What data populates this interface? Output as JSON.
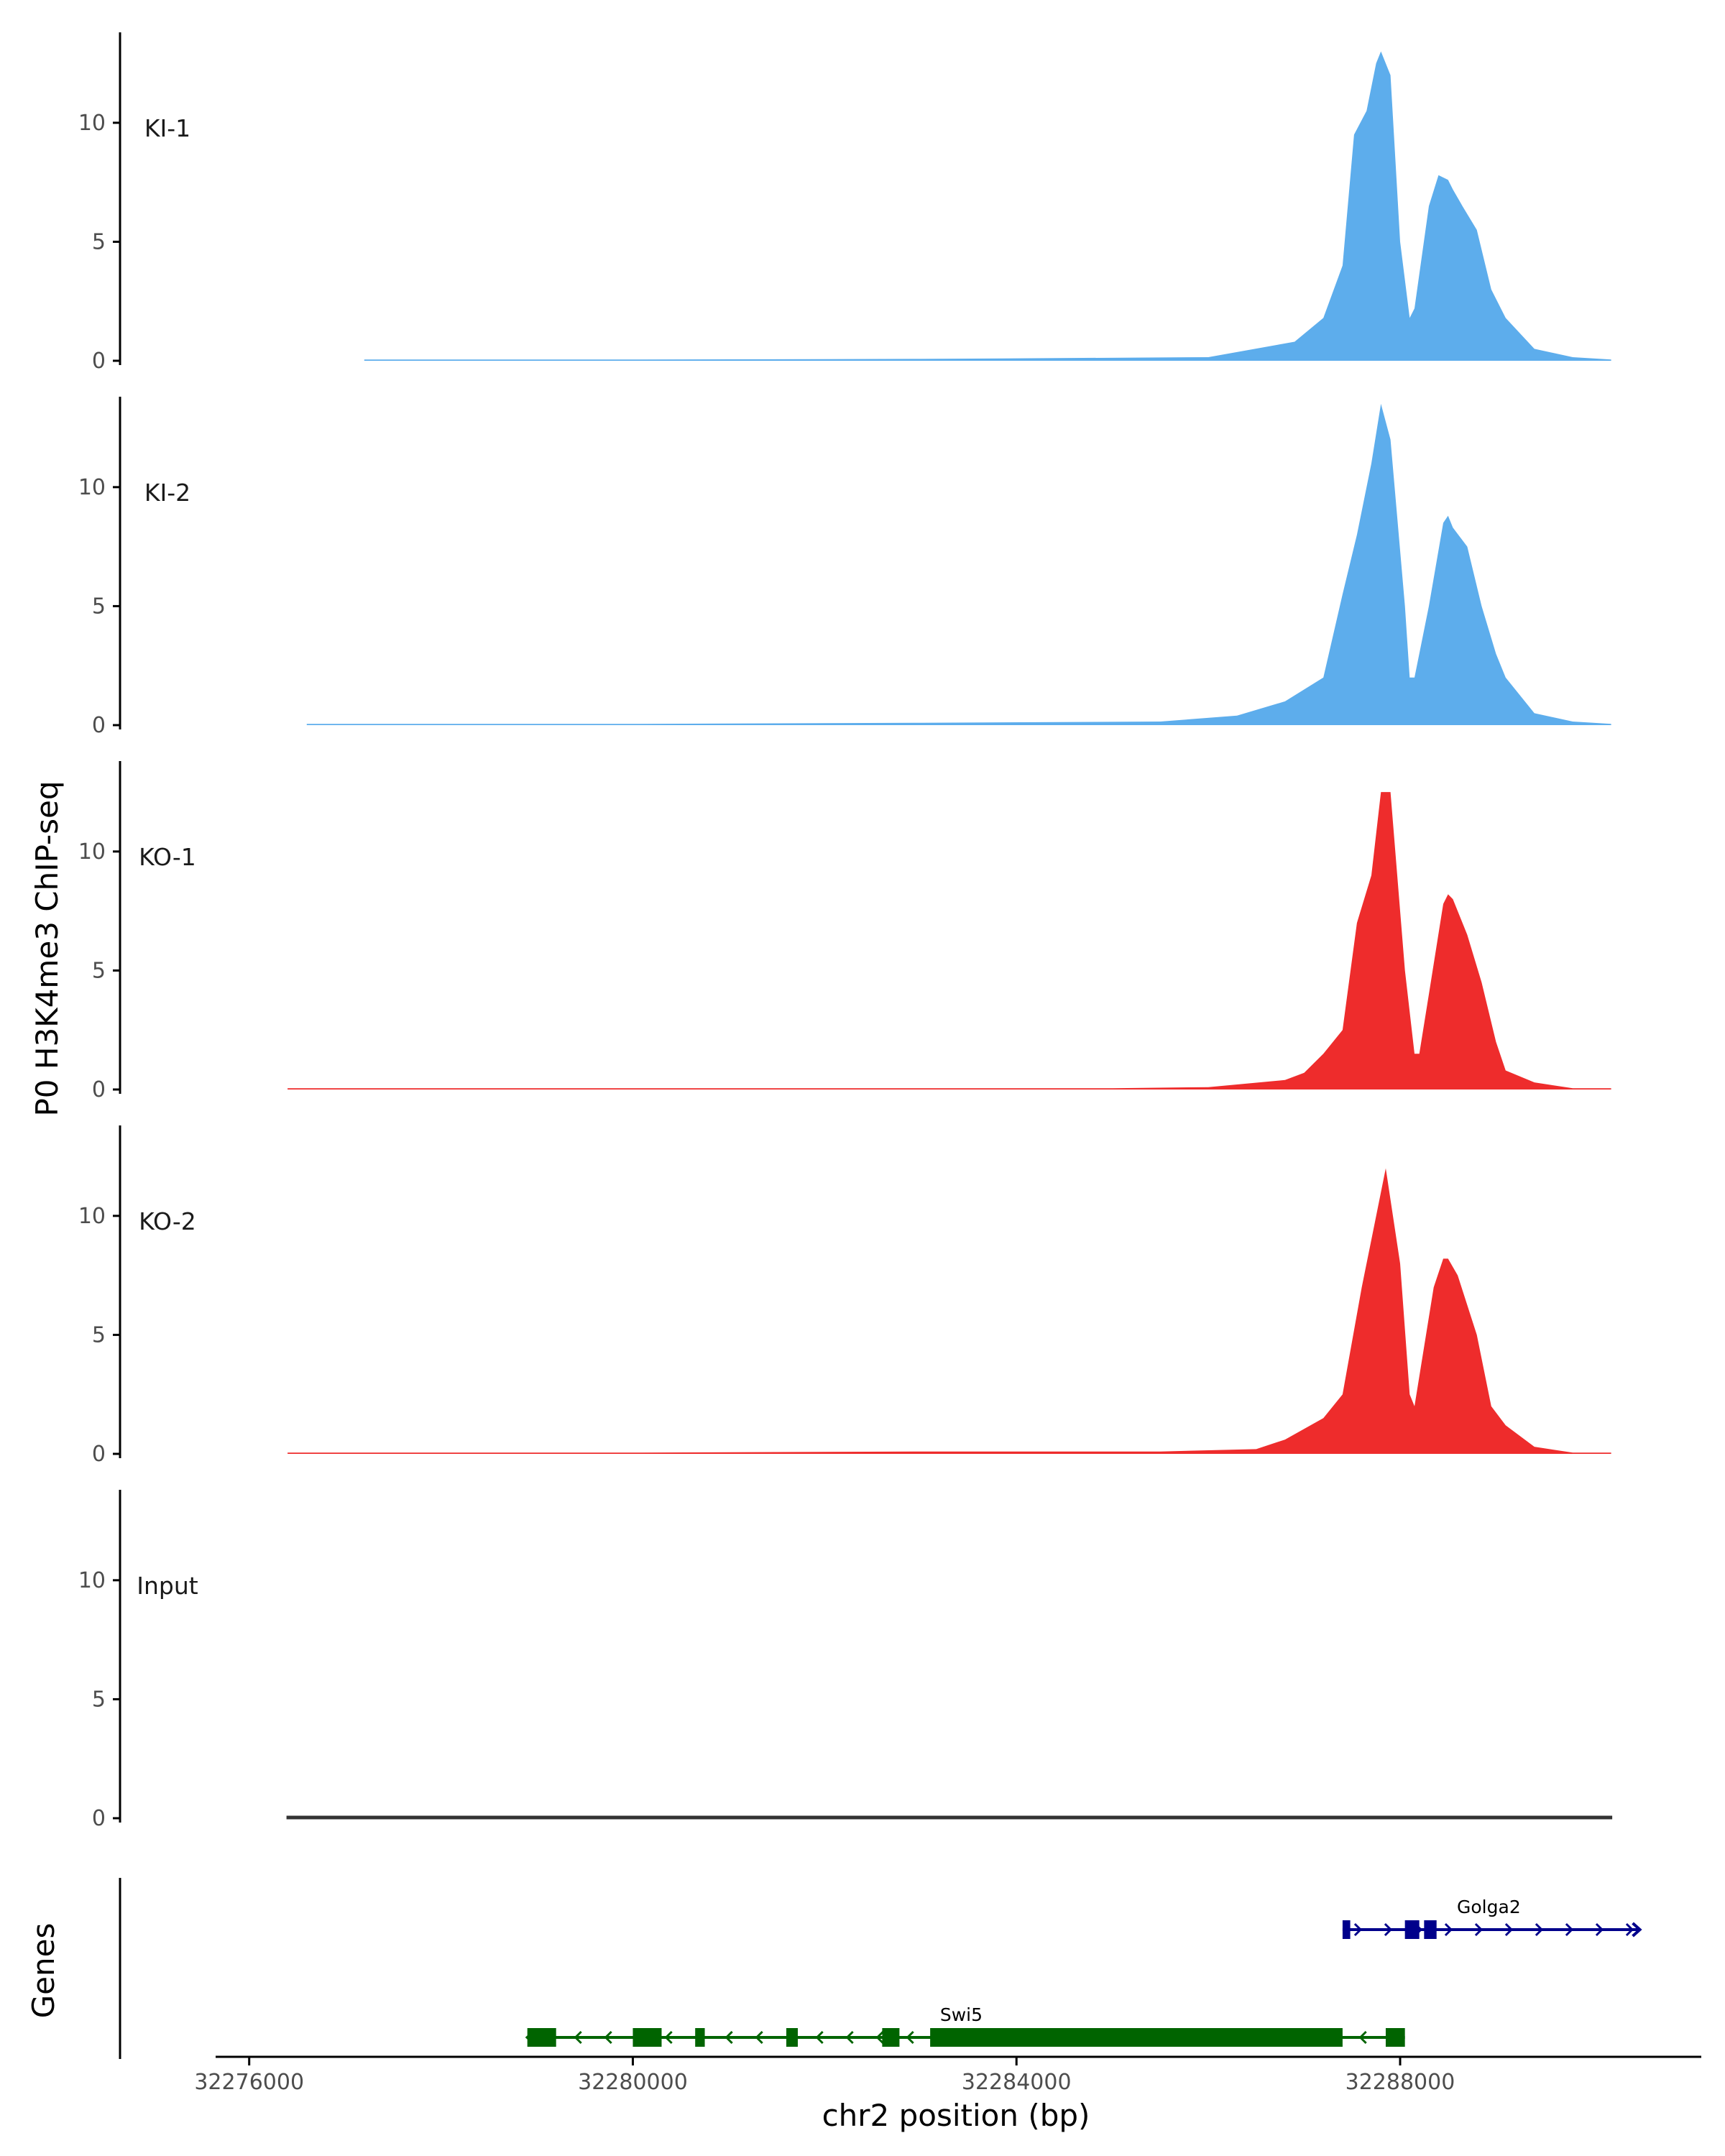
{
  "colors": {
    "KI": "#5DADEC",
    "KO": "#EE2C2C",
    "Input": "#333333",
    "gene_minus": "#006400",
    "gene_plus": "#00008B",
    "axis": "#000000"
  },
  "chart_data": {
    "type": "area",
    "ylabel": "P0 H3K4me3 ChIP-seq",
    "xlabel": "chr2 position (bp)",
    "x_ticks": [
      32276000,
      32280000,
      32284000,
      32288000
    ],
    "x_tick_labels": [
      "32276000",
      "32280000",
      "32284000",
      "32288000"
    ],
    "xlim": [
      32275650,
      32291200
    ],
    "ylim": [
      0,
      13.8
    ],
    "y_ticks": [
      0,
      5,
      10
    ],
    "y_tick_labels": [
      "0",
      "5",
      "10"
    ],
    "tracks": [
      {
        "name": "KI-1",
        "group": "KI",
        "x": [
          32277200,
          32280000,
          32283000,
          32286000,
          32286900,
          32287200,
          32287400,
          32287520,
          32287650,
          32287750,
          32287800,
          32287900,
          32288000,
          32288100,
          32288150,
          32288300,
          32288400,
          32288500,
          32288550,
          32288650,
          32288800,
          32288950,
          32289100,
          32289400,
          32289800,
          32290200
        ],
        "y": [
          0.05,
          0.05,
          0.08,
          0.15,
          0.8,
          1.8,
          4.0,
          9.5,
          10.5,
          12.5,
          13.0,
          12.0,
          5.0,
          1.8,
          2.2,
          6.5,
          7.8,
          7.6,
          7.2,
          6.5,
          5.5,
          3.0,
          1.8,
          0.5,
          0.15,
          0.05
        ]
      },
      {
        "name": "KI-2",
        "group": "KI",
        "x": [
          32276600,
          32280000,
          32283000,
          32285500,
          32286300,
          32286800,
          32287200,
          32287400,
          32287550,
          32287700,
          32287800,
          32287900,
          32288050,
          32288100,
          32288150,
          32288300,
          32288450,
          32288500,
          32288550,
          32288700,
          32288850,
          32289000,
          32289100,
          32289400,
          32289800,
          32290200
        ],
        "y": [
          0.05,
          0.05,
          0.1,
          0.15,
          0.4,
          1.0,
          2.0,
          5.5,
          8.0,
          11.0,
          13.5,
          12.0,
          5.0,
          2.0,
          2.0,
          5.0,
          8.5,
          8.8,
          8.3,
          7.5,
          5.0,
          3.0,
          2.0,
          0.5,
          0.15,
          0.05
        ]
      },
      {
        "name": "KO-1",
        "group": "KO",
        "x": [
          32276400,
          32280000,
          32283000,
          32285000,
          32286000,
          32286800,
          32287000,
          32287200,
          32287400,
          32287550,
          32287700,
          32287800,
          32287900,
          32288050,
          32288150,
          32288200,
          32288300,
          32288450,
          32288500,
          32288550,
          32288700,
          32288850,
          32289000,
          32289100,
          32289400,
          32289800,
          32290200
        ],
        "y": [
          0.05,
          0.05,
          0.05,
          0.05,
          0.1,
          0.4,
          0.7,
          1.5,
          2.5,
          7.0,
          9.0,
          12.5,
          12.5,
          5.0,
          1.5,
          1.5,
          4.0,
          7.8,
          8.2,
          8.0,
          6.5,
          4.5,
          2.0,
          0.8,
          0.3,
          0.05,
          0.05
        ]
      },
      {
        "name": "KO-2",
        "group": "KO",
        "x": [
          32276400,
          32280000,
          32283000,
          32285500,
          32286500,
          32286800,
          32287200,
          32287400,
          32287600,
          32287700,
          32287850,
          32288000,
          32288100,
          32288150,
          32288350,
          32288450,
          32288500,
          32288600,
          32288800,
          32288950,
          32289100,
          32289400,
          32289800,
          32290200
        ],
        "y": [
          0.05,
          0.05,
          0.1,
          0.1,
          0.2,
          0.6,
          1.5,
          2.5,
          7.0,
          9.0,
          12.0,
          8.0,
          2.5,
          2.0,
          7.0,
          8.2,
          8.2,
          7.5,
          5.0,
          2.0,
          1.2,
          0.3,
          0.05,
          0.05
        ]
      },
      {
        "name": "Input",
        "group": "Input",
        "x": [
          32276400,
          32278000,
          32280000,
          32282000,
          32284000,
          32286000,
          32288000,
          32290200
        ],
        "y": [
          0.06,
          0.06,
          0.06,
          0.06,
          0.06,
          0.06,
          0.06,
          0.06
        ]
      }
    ],
    "genes_track_label": "Genes",
    "genes": [
      {
        "name": "Golga2",
        "strand": "+",
        "start": 32287400,
        "end": 32290500,
        "exons": [
          [
            32287400,
            32287480
          ],
          [
            32288050,
            32288200
          ],
          [
            32288250,
            32288380
          ]
        ]
      },
      {
        "name": "Swi5",
        "strand": "-",
        "start": 32278900,
        "end": 32288050,
        "exons": [
          [
            32278900,
            32279200
          ],
          [
            32280000,
            32280300
          ],
          [
            32280650,
            32280750
          ],
          [
            32281600,
            32281720
          ],
          [
            32282600,
            32282780
          ],
          [
            32283100,
            32287400
          ],
          [
            32287850,
            32288050
          ]
        ]
      }
    ]
  }
}
